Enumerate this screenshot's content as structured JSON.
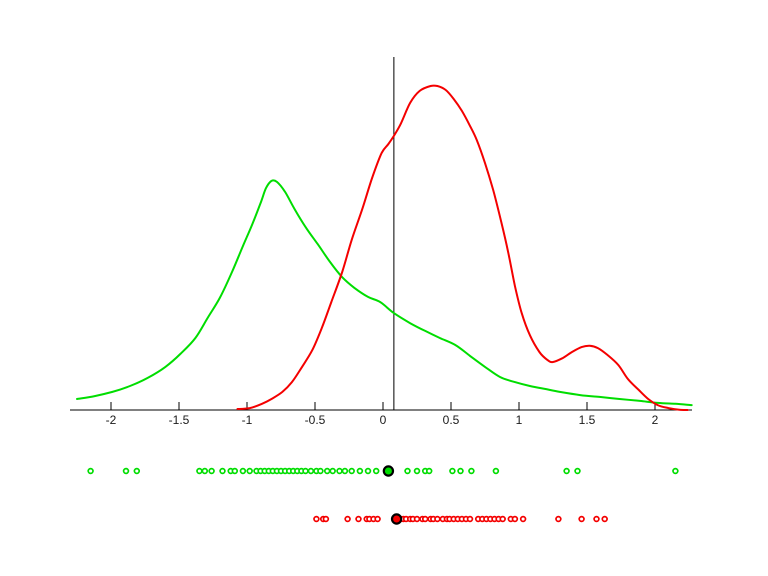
{
  "figure": {
    "background": "#ffffff",
    "description": "Two kernel density estimate curves (green and red) over a shared horizontal axis, a vertical black reference line near x=0.08, and two rug-plot rows of sample points (green above red) below the axis, each with one highlighted black-ringed point."
  },
  "chart_data": {
    "type": "line",
    "subtype": "kernel-density-with-rug",
    "title": "",
    "xlabel": "",
    "ylabel": "",
    "grid": false,
    "legend": "none",
    "xlim": [
      -2.3,
      2.3
    ],
    "ylim": [
      0,
      1.1
    ],
    "y_units": "relative density (axis unlabeled; scaled so red peak = 1.0)",
    "x_ticks": [
      -2,
      -1.5,
      -1,
      -0.5,
      0,
      0.5,
      1,
      1.5,
      2
    ],
    "x_tick_labels": [
      "-2",
      "-1.5",
      "-1",
      "-0.5",
      "0",
      "0.5",
      "1",
      "1.5",
      "2"
    ],
    "reference_line_x": 0.08,
    "colors": {
      "green": "#00dd00",
      "red": "#f40000",
      "axis": "#000000",
      "highlight_ring": "#000000"
    },
    "series": [
      {
        "name": "green-density",
        "color": "#00dd00",
        "peak": {
          "x": -0.82,
          "y": 0.707
        },
        "points": [
          [
            -2.25,
            0.034
          ],
          [
            -2.12,
            0.043
          ],
          [
            -1.99,
            0.056
          ],
          [
            -1.86,
            0.074
          ],
          [
            -1.73,
            0.099
          ],
          [
            -1.6,
            0.133
          ],
          [
            -1.49,
            0.173
          ],
          [
            -1.38,
            0.222
          ],
          [
            -1.29,
            0.284
          ],
          [
            -1.2,
            0.346
          ],
          [
            -1.11,
            0.426
          ],
          [
            -1.03,
            0.506
          ],
          [
            -0.96,
            0.574
          ],
          [
            -0.9,
            0.639
          ],
          [
            -0.86,
            0.685
          ],
          [
            -0.82,
            0.707
          ],
          [
            -0.78,
            0.704
          ],
          [
            -0.72,
            0.673
          ],
          [
            -0.65,
            0.62
          ],
          [
            -0.57,
            0.565
          ],
          [
            -0.48,
            0.512
          ],
          [
            -0.39,
            0.457
          ],
          [
            -0.3,
            0.41
          ],
          [
            -0.21,
            0.377
          ],
          [
            -0.11,
            0.349
          ],
          [
            -0.02,
            0.333
          ],
          [
            0.08,
            0.299
          ],
          [
            0.2,
            0.268
          ],
          [
            0.31,
            0.244
          ],
          [
            0.42,
            0.222
          ],
          [
            0.53,
            0.201
          ],
          [
            0.64,
            0.167
          ],
          [
            0.75,
            0.133
          ],
          [
            0.86,
            0.102
          ],
          [
            0.97,
            0.086
          ],
          [
            1.08,
            0.074
          ],
          [
            1.19,
            0.065
          ],
          [
            1.3,
            0.056
          ],
          [
            1.45,
            0.046
          ],
          [
            1.6,
            0.04
          ],
          [
            1.74,
            0.034
          ],
          [
            1.89,
            0.028
          ],
          [
            2.02,
            0.022
          ],
          [
            2.15,
            0.019
          ],
          [
            2.27,
            0.015
          ]
        ]
      },
      {
        "name": "red-density",
        "color": "#f40000",
        "peak": {
          "x": 0.37,
          "y": 1.0
        },
        "points": [
          [
            -1.07,
            0.003
          ],
          [
            -0.98,
            0.006
          ],
          [
            -0.89,
            0.019
          ],
          [
            -0.82,
            0.034
          ],
          [
            -0.74,
            0.056
          ],
          [
            -0.67,
            0.086
          ],
          [
            -0.6,
            0.13
          ],
          [
            -0.52,
            0.185
          ],
          [
            -0.45,
            0.253
          ],
          [
            -0.38,
            0.333
          ],
          [
            -0.3,
            0.426
          ],
          [
            -0.23,
            0.525
          ],
          [
            -0.15,
            0.623
          ],
          [
            -0.08,
            0.716
          ],
          [
            -0.01,
            0.793
          ],
          [
            0.04,
            0.821
          ],
          [
            0.08,
            0.846
          ],
          [
            0.13,
            0.883
          ],
          [
            0.2,
            0.948
          ],
          [
            0.27,
            0.985
          ],
          [
            0.35,
            1.0
          ],
          [
            0.4,
            1.0
          ],
          [
            0.46,
            0.988
          ],
          [
            0.52,
            0.96
          ],
          [
            0.58,
            0.923
          ],
          [
            0.64,
            0.877
          ],
          [
            0.69,
            0.833
          ],
          [
            0.75,
            0.762
          ],
          [
            0.81,
            0.679
          ],
          [
            0.87,
            0.58
          ],
          [
            0.92,
            0.488
          ],
          [
            0.97,
            0.383
          ],
          [
            1.02,
            0.299
          ],
          [
            1.08,
            0.231
          ],
          [
            1.15,
            0.179
          ],
          [
            1.21,
            0.154
          ],
          [
            1.25,
            0.148
          ],
          [
            1.32,
            0.16
          ],
          [
            1.39,
            0.179
          ],
          [
            1.46,
            0.194
          ],
          [
            1.52,
            0.198
          ],
          [
            1.58,
            0.191
          ],
          [
            1.65,
            0.17
          ],
          [
            1.73,
            0.139
          ],
          [
            1.8,
            0.096
          ],
          [
            1.88,
            0.062
          ],
          [
            1.95,
            0.034
          ],
          [
            2.02,
            0.015
          ],
          [
            2.1,
            0.006
          ],
          [
            2.18,
            0.001
          ],
          [
            2.24,
            0.0
          ]
        ]
      }
    ],
    "rugs": [
      {
        "name": "green-sample",
        "color": "#00dd00",
        "highlight_x": 0.04,
        "x": [
          -2.15,
          -1.89,
          -1.81,
          -1.35,
          -1.31,
          -1.26,
          -1.18,
          -1.12,
          -1.09,
          -1.03,
          -0.98,
          -0.93,
          -0.9,
          -0.87,
          -0.84,
          -0.81,
          -0.78,
          -0.75,
          -0.72,
          -0.69,
          -0.66,
          -0.63,
          -0.6,
          -0.57,
          -0.53,
          -0.49,
          -0.46,
          -0.41,
          -0.37,
          -0.32,
          -0.28,
          -0.23,
          -0.17,
          -0.11,
          -0.05,
          0.18,
          0.25,
          0.31,
          0.34,
          0.51,
          0.57,
          0.65,
          0.83,
          1.35,
          1.43,
          2.15
        ]
      },
      {
        "name": "red-sample",
        "color": "#f40000",
        "highlight_x": 0.1,
        "x": [
          -0.49,
          -0.44,
          -0.42,
          -0.26,
          -0.18,
          -0.12,
          -0.1,
          -0.07,
          -0.04,
          0.13,
          0.15,
          0.17,
          0.2,
          0.22,
          0.25,
          0.29,
          0.31,
          0.35,
          0.37,
          0.4,
          0.44,
          0.47,
          0.49,
          0.52,
          0.55,
          0.58,
          0.61,
          0.64,
          0.7,
          0.73,
          0.76,
          0.79,
          0.82,
          0.85,
          0.88,
          0.94,
          0.97,
          1.03,
          1.29,
          1.46,
          1.57,
          1.63
        ]
      }
    ]
  }
}
